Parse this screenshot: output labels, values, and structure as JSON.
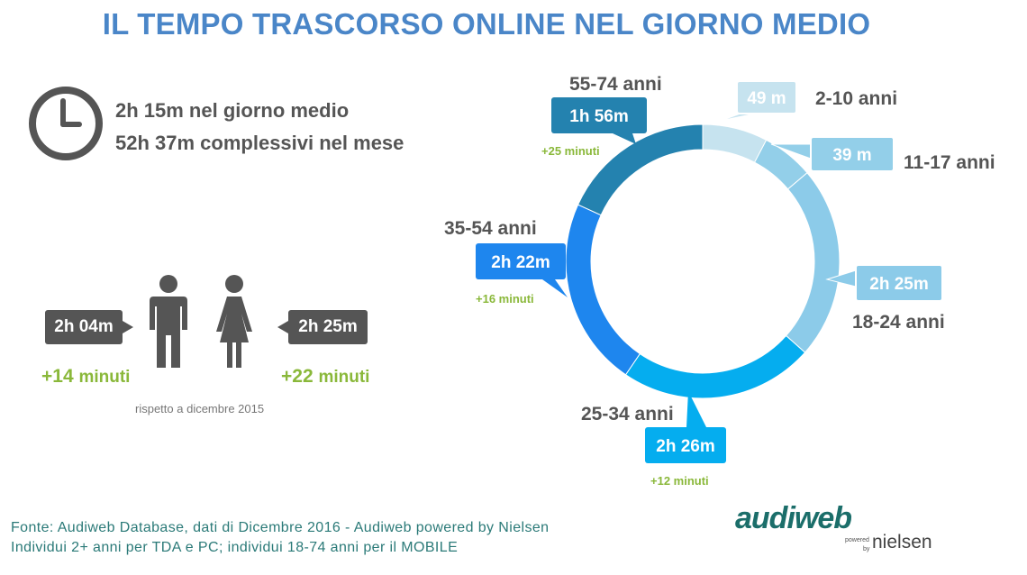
{
  "title": "IL TEMPO TRASCORSO ONLINE NEL GIORNO MEDIO",
  "summary": {
    "daily": "2h 15m nel giorno medio",
    "monthly": "52h 37m complessivi nel mese"
  },
  "gender": {
    "male_time": "2h 04m",
    "male_delta_num": "+14",
    "female_time": "2h 25m",
    "female_delta_num": "+22",
    "delta_unit": "minuti",
    "note": "rispetto a dicembre 2015"
  },
  "colors": {
    "title": "#4a86c8",
    "green": "#8ab83a",
    "dark_gray": "#555555"
  },
  "icons": [
    "clock-icon",
    "male-person-icon",
    "female-person-icon"
  ],
  "chart_data": {
    "type": "pie",
    "variant": "donut",
    "title": "",
    "segments": [
      {
        "label": "2-10 anni",
        "value_text": "49 m",
        "minutes": 49,
        "delta": "",
        "color": "#c6e3ef"
      },
      {
        "label": "11-17 anni",
        "value_text": "39 m",
        "minutes": 39,
        "delta": "",
        "color": "#93cfe9"
      },
      {
        "label": "18-24 anni",
        "value_text": "2h 25m",
        "minutes": 145,
        "delta": "",
        "color": "#8ccbe9"
      },
      {
        "label": "25-34 anni",
        "value_text": "2h 26m",
        "minutes": 146,
        "delta": "+12 minuti",
        "color": "#05adef"
      },
      {
        "label": "35-54 anni",
        "value_text": "2h 22m",
        "minutes": 142,
        "delta": "+16 minuti",
        "color": "#1e86ee"
      },
      {
        "label": "55-74 anni",
        "value_text": "1h 56m",
        "minutes": 116,
        "delta": "+25 minuti",
        "color": "#2482af"
      }
    ]
  },
  "footer": {
    "line1": "Fonte: Audiweb Database, dati di Dicembre 2016 - Audiweb powered by Nielsen",
    "line2": "Individui 2+ anni per TDA e PC; individui 18-74 anni per il MOBILE"
  },
  "logo": {
    "main": "audiweb",
    "powered": "powered",
    "by": "by",
    "nielsen": "nielsen"
  }
}
